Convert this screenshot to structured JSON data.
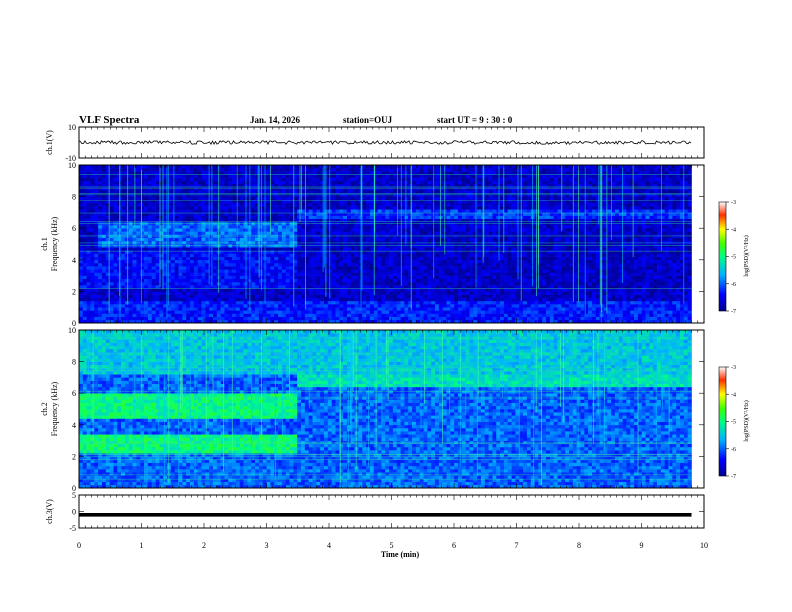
{
  "header": {
    "title": "VLF Spectra",
    "date": "Jan. 14, 2026",
    "station": "station=OUJ",
    "start": "start  UT =  9 : 30 : 0"
  },
  "chart_data": [
    {
      "type": "line",
      "panel": "ch1-waveform",
      "ylabel": "ch.1(V)",
      "ylim": [
        -10,
        10
      ],
      "yticks": [
        "10",
        "-10"
      ],
      "xlim": [
        0,
        10
      ],
      "series_level": 0,
      "trace_end_min": 9.8,
      "line_color": "#000000"
    },
    {
      "type": "heatmap",
      "panel": "ch1-spectrogram",
      "ylabel": "ch.1\nFrequency (kHz)",
      "ylim": [
        0,
        10
      ],
      "yticks": [
        "0",
        "2",
        "4",
        "6",
        "8",
        "10"
      ],
      "xlim": [
        0,
        10
      ],
      "data_end_min": 9.8,
      "colorbar": {
        "label": "log(PSD)(V²/Hz)",
        "range": [
          -7,
          -3
        ],
        "ticks": [
          "-3",
          "-4",
          "-5",
          "-6",
          "-7"
        ]
      },
      "background_level": -6.7,
      "bands": [
        {
          "t0": 0.3,
          "t1": 3.5,
          "f0": 4.8,
          "f1": 6.4,
          "level": -6.0
        },
        {
          "t0": 0,
          "t1": 3.5,
          "f0": 2.3,
          "f1": 4.6,
          "level": -6.4
        },
        {
          "t0": 3.5,
          "t1": 9.8,
          "f0": 6.7,
          "f1": 7.3,
          "level": -6.2
        },
        {
          "t0": 0,
          "t1": 9.8,
          "f0": 0,
          "f1": 1.4,
          "level": -6.3
        }
      ]
    },
    {
      "type": "heatmap",
      "panel": "ch2-spectrogram",
      "ylabel": "ch.2\nFrequency (kHz)",
      "ylim": [
        0,
        10
      ],
      "yticks": [
        "0",
        "2",
        "4",
        "6",
        "8",
        "10"
      ],
      "xlim": [
        0,
        10
      ],
      "data_end_min": 9.8,
      "colorbar": {
        "label": "log(PSD)(V²/Hz)",
        "range": [
          -7,
          -3
        ],
        "ticks": [
          "-3",
          "-4",
          "-5",
          "-6",
          "-7"
        ]
      },
      "background_level": -6.0,
      "bands": [
        {
          "t0": 0,
          "t1": 3.5,
          "f0": 4.4,
          "f1": 6.1,
          "level": -5.0
        },
        {
          "t0": 0,
          "t1": 3.5,
          "f0": 2.2,
          "f1": 3.4,
          "level": -5.0
        },
        {
          "t0": 3.5,
          "t1": 9.8,
          "f0": 6.5,
          "f1": 7.2,
          "level": -5.3
        },
        {
          "t0": 0,
          "t1": 9.8,
          "f0": 7.3,
          "f1": 10.0,
          "level": -5.5
        }
      ]
    },
    {
      "type": "line",
      "panel": "ch3-waveform",
      "ylabel": "ch.3(V)",
      "ylim": [
        -5,
        5
      ],
      "yticks": [
        "5",
        "0",
        "-5"
      ],
      "xlim": [
        0,
        10
      ],
      "series_level": -1,
      "trace_end_min": 9.8,
      "line_color": "#000000",
      "xlabel": "Time (min)",
      "xticks": [
        "0",
        "1",
        "2",
        "3",
        "4",
        "5",
        "6",
        "7",
        "8",
        "9",
        "10"
      ]
    }
  ],
  "icons": {
    "colorbar_top": "colorbar-icon",
    "colorbar_bottom": "colorbar-icon"
  }
}
